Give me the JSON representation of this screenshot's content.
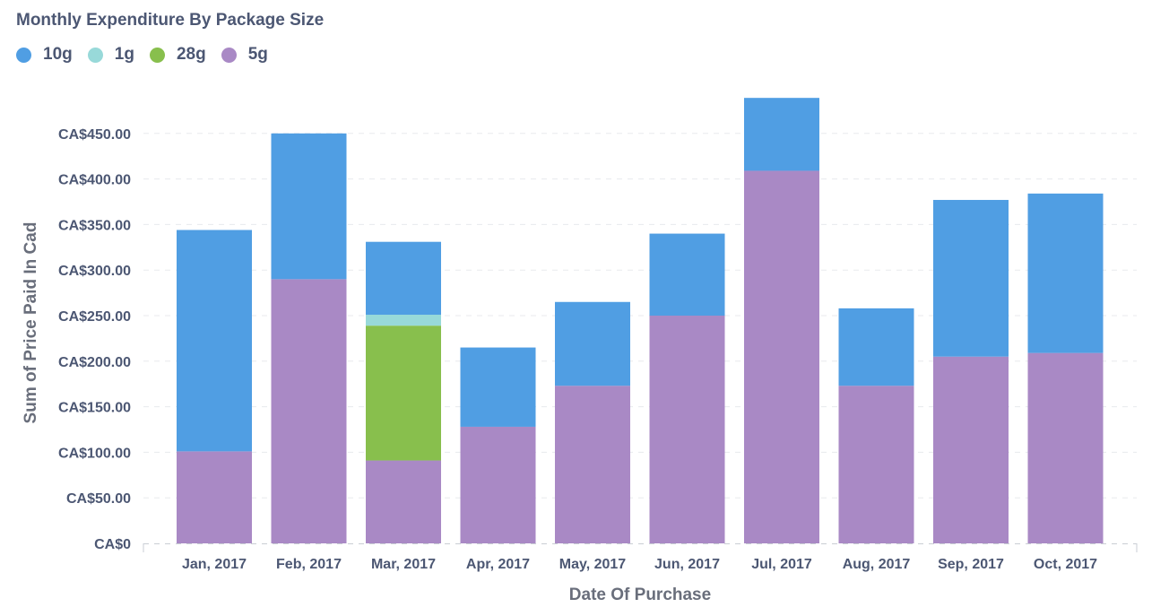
{
  "chart_data": {
    "type": "bar",
    "stacked": true,
    "title": "Monthly Expenditure By Package Size",
    "xlabel": "Date Of Purchase",
    "ylabel": "Sum of Price Paid In Cad",
    "ylim": [
      0,
      500
    ],
    "yticks": [
      0,
      50,
      100,
      150,
      200,
      250,
      300,
      350,
      400,
      450
    ],
    "ytick_labels": [
      "CA$0",
      "CA$50.00",
      "CA$100.00",
      "CA$150.00",
      "CA$200.00",
      "CA$250.00",
      "CA$300.00",
      "CA$350.00",
      "CA$400.00",
      "CA$450.00"
    ],
    "grid": true,
    "legend_position": "top-left",
    "categories": [
      "Jan, 2017",
      "Feb, 2017",
      "Mar, 2017",
      "Apr, 2017",
      "May, 2017",
      "Jun, 2017",
      "Jul, 2017",
      "Aug, 2017",
      "Sep, 2017",
      "Oct, 2017"
    ],
    "series": [
      {
        "name": "10g",
        "color": "#509ee3",
        "values": [
          243,
          160,
          80,
          87,
          92,
          90,
          80,
          85,
          172,
          175
        ]
      },
      {
        "name": "1g",
        "color": "#98d9d9",
        "values": [
          0,
          0,
          12,
          0,
          0,
          0,
          0,
          0,
          0,
          0
        ]
      },
      {
        "name": "28g",
        "color": "#88bf4d",
        "values": [
          0,
          0,
          148,
          0,
          0,
          0,
          0,
          0,
          0,
          0
        ]
      },
      {
        "name": "5g",
        "color": "#a989c5",
        "values": [
          101,
          290,
          91,
          128,
          173,
          250,
          409,
          173,
          205,
          209
        ]
      }
    ],
    "stack_order": [
      "5g",
      "28g",
      "1g",
      "10g"
    ]
  }
}
